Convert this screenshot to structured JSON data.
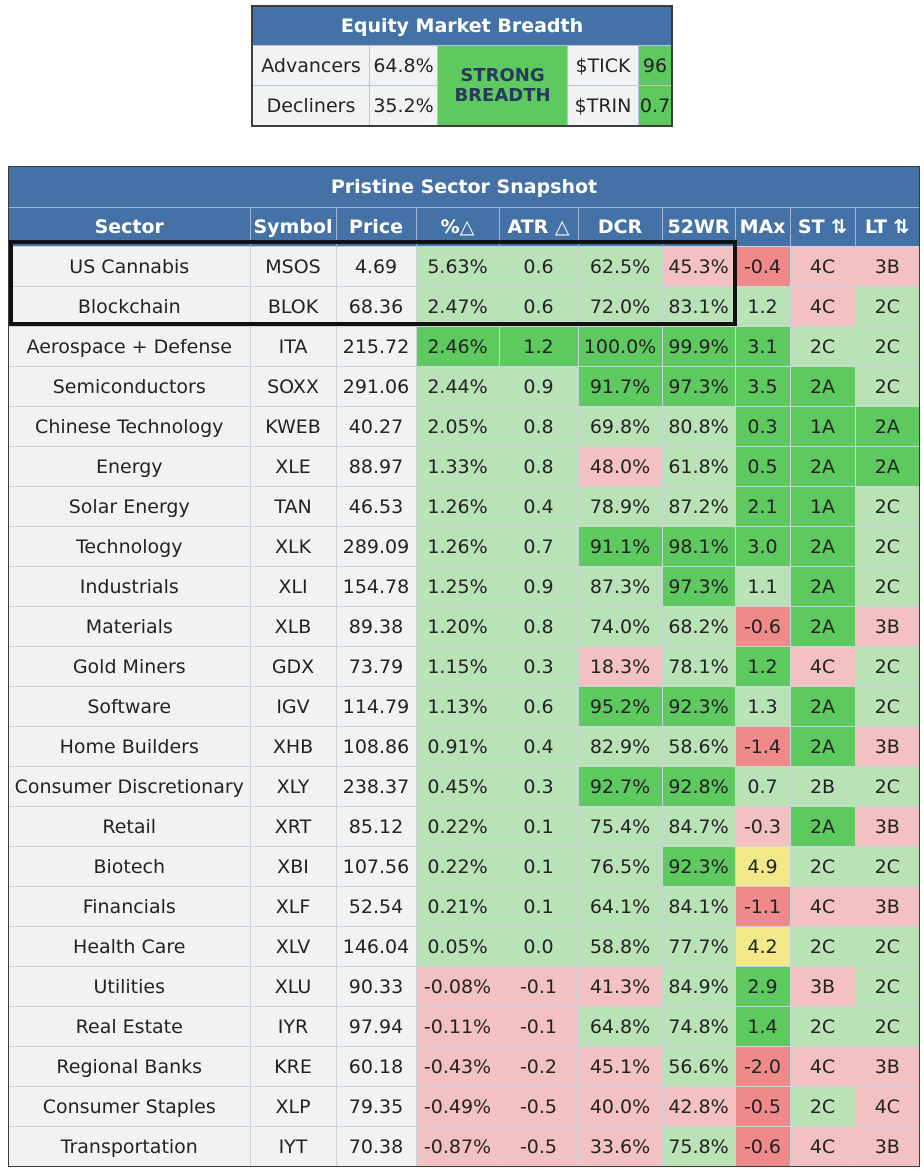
{
  "breadth": {
    "title": "Equity Market Breadth",
    "advancers_label": "Advancers",
    "advancers_value": "64.8%",
    "decliners_label": "Decliners",
    "decliners_value": "35.2%",
    "status_line1": "STRONG",
    "status_line2": "BREADTH",
    "tick_label": "$TICK",
    "tick_value": "96",
    "trin_label": "$TRIN",
    "trin_value": "0.7"
  },
  "snapshot": {
    "title": "Pristine Sector Snapshot",
    "columns": [
      "Sector",
      "Symbol",
      "Price",
      "%△",
      "ATR △",
      "DCR",
      "52WR",
      "MAx",
      "ST ⇅",
      "LT ⇅"
    ],
    "rows": [
      {
        "cells": [
          "US Cannabis",
          "MSOS",
          "4.69",
          "5.63%",
          "0.6",
          "62.5%",
          "45.3%",
          "-0.4",
          "4C",
          "3B"
        ],
        "colors": [
          "p",
          "p",
          "p",
          "lg",
          "lg",
          "lg",
          "pk",
          "rd",
          "pk",
          "pk"
        ]
      },
      {
        "cells": [
          "Blockchain",
          "BLOK",
          "68.36",
          "2.47%",
          "0.6",
          "72.0%",
          "83.1%",
          "1.2",
          "4C",
          "2C"
        ],
        "colors": [
          "p",
          "p",
          "p",
          "lg",
          "lg",
          "lg",
          "lg",
          "lg",
          "pk",
          "lg"
        ]
      },
      {
        "cells": [
          "Aerospace + Defense",
          "ITA",
          "215.72",
          "2.46%",
          "1.2",
          "100.0%",
          "99.9%",
          "3.1",
          "2C",
          "2C"
        ],
        "colors": [
          "p",
          "p",
          "p",
          "dg",
          "dg",
          "dg",
          "dg",
          "dg",
          "lg",
          "lg"
        ]
      },
      {
        "cells": [
          "Semiconductors",
          "SOXX",
          "291.06",
          "2.44%",
          "0.9",
          "91.7%",
          "97.3%",
          "3.5",
          "2A",
          "2C"
        ],
        "colors": [
          "p",
          "p",
          "p",
          "lg",
          "lg",
          "dg",
          "dg",
          "dg",
          "dg",
          "lg"
        ]
      },
      {
        "cells": [
          "Chinese Technology",
          "KWEB",
          "40.27",
          "2.05%",
          "0.8",
          "69.8%",
          "80.8%",
          "0.3",
          "1A",
          "2A"
        ],
        "colors": [
          "p",
          "p",
          "p",
          "lg",
          "lg",
          "lg",
          "lg",
          "dg",
          "dg",
          "dg"
        ]
      },
      {
        "cells": [
          "Energy",
          "XLE",
          "88.97",
          "1.33%",
          "0.8",
          "48.0%",
          "61.8%",
          "0.5",
          "2A",
          "2A"
        ],
        "colors": [
          "p",
          "p",
          "p",
          "lg",
          "lg",
          "pk",
          "lg",
          "dg",
          "dg",
          "dg"
        ]
      },
      {
        "cells": [
          "Solar Energy",
          "TAN",
          "46.53",
          "1.26%",
          "0.4",
          "78.9%",
          "87.2%",
          "2.1",
          "1A",
          "2C"
        ],
        "colors": [
          "p",
          "p",
          "p",
          "lg",
          "lg",
          "lg",
          "lg",
          "dg",
          "dg",
          "lg"
        ]
      },
      {
        "cells": [
          "Technology",
          "XLK",
          "289.09",
          "1.26%",
          "0.7",
          "91.1%",
          "98.1%",
          "3.0",
          "2A",
          "2C"
        ],
        "colors": [
          "p",
          "p",
          "p",
          "lg",
          "lg",
          "dg",
          "dg",
          "dg",
          "dg",
          "lg"
        ]
      },
      {
        "cells": [
          "Industrials",
          "XLI",
          "154.78",
          "1.25%",
          "0.9",
          "87.3%",
          "97.3%",
          "1.1",
          "2A",
          "2C"
        ],
        "colors": [
          "p",
          "p",
          "p",
          "lg",
          "lg",
          "lg",
          "dg",
          "lg",
          "dg",
          "lg"
        ]
      },
      {
        "cells": [
          "Materials",
          "XLB",
          "89.38",
          "1.20%",
          "0.8",
          "74.0%",
          "68.2%",
          "-0.6",
          "2A",
          "3B"
        ],
        "colors": [
          "p",
          "p",
          "p",
          "lg",
          "lg",
          "lg",
          "lg",
          "rd",
          "dg",
          "pk"
        ]
      },
      {
        "cells": [
          "Gold Miners",
          "GDX",
          "73.79",
          "1.15%",
          "0.3",
          "18.3%",
          "78.1%",
          "1.2",
          "4C",
          "2C"
        ],
        "colors": [
          "p",
          "p",
          "p",
          "lg",
          "lg",
          "pk",
          "lg",
          "dg",
          "pk",
          "lg"
        ]
      },
      {
        "cells": [
          "Software",
          "IGV",
          "114.79",
          "1.13%",
          "0.6",
          "95.2%",
          "92.3%",
          "1.3",
          "2A",
          "2C"
        ],
        "colors": [
          "p",
          "p",
          "p",
          "lg",
          "lg",
          "dg",
          "dg",
          "lg",
          "dg",
          "lg"
        ]
      },
      {
        "cells": [
          "Home Builders",
          "XHB",
          "108.86",
          "0.91%",
          "0.4",
          "82.9%",
          "58.6%",
          "-1.4",
          "2A",
          "3B"
        ],
        "colors": [
          "p",
          "p",
          "p",
          "lg",
          "lg",
          "lg",
          "lg",
          "rd",
          "dg",
          "pk"
        ]
      },
      {
        "cells": [
          "Consumer Discretionary",
          "XLY",
          "238.37",
          "0.45%",
          "0.3",
          "92.7%",
          "92.8%",
          "0.7",
          "2B",
          "2C"
        ],
        "colors": [
          "p",
          "p",
          "p",
          "lg",
          "lg",
          "dg",
          "dg",
          "lg",
          "lg",
          "lg"
        ]
      },
      {
        "cells": [
          "Retail",
          "XRT",
          "85.12",
          "0.22%",
          "0.1",
          "75.4%",
          "84.7%",
          "-0.3",
          "2A",
          "3B"
        ],
        "colors": [
          "p",
          "p",
          "p",
          "lg",
          "lg",
          "lg",
          "lg",
          "pk",
          "dg",
          "pk"
        ]
      },
      {
        "cells": [
          "Biotech",
          "XBI",
          "107.56",
          "0.22%",
          "0.1",
          "76.5%",
          "92.3%",
          "4.9",
          "2C",
          "2C"
        ],
        "colors": [
          "p",
          "p",
          "p",
          "lg",
          "lg",
          "lg",
          "dg",
          "yl",
          "lg",
          "lg"
        ]
      },
      {
        "cells": [
          "Financials",
          "XLF",
          "52.54",
          "0.21%",
          "0.1",
          "64.1%",
          "84.1%",
          "-1.1",
          "4C",
          "3B"
        ],
        "colors": [
          "p",
          "p",
          "p",
          "lg",
          "lg",
          "lg",
          "lg",
          "rd",
          "pk",
          "pk"
        ]
      },
      {
        "cells": [
          "Health Care",
          "XLV",
          "146.04",
          "0.05%",
          "0.0",
          "58.8%",
          "77.7%",
          "4.2",
          "2C",
          "2C"
        ],
        "colors": [
          "p",
          "p",
          "p",
          "lg",
          "lg",
          "lg",
          "lg",
          "yl",
          "lg",
          "lg"
        ]
      },
      {
        "cells": [
          "Utilities",
          "XLU",
          "90.33",
          "-0.08%",
          "-0.1",
          "41.3%",
          "84.9%",
          "2.9",
          "3B",
          "2C"
        ],
        "colors": [
          "p",
          "p",
          "p",
          "pk",
          "pk",
          "pk",
          "lg",
          "dg",
          "pk",
          "lg"
        ]
      },
      {
        "cells": [
          "Real Estate",
          "IYR",
          "97.94",
          "-0.11%",
          "-0.1",
          "64.8%",
          "74.8%",
          "1.4",
          "2C",
          "2C"
        ],
        "colors": [
          "p",
          "p",
          "p",
          "pk",
          "pk",
          "lg",
          "lg",
          "dg",
          "lg",
          "lg"
        ]
      },
      {
        "cells": [
          "Regional Banks",
          "KRE",
          "60.18",
          "-0.43%",
          "-0.2",
          "45.1%",
          "56.6%",
          "-2.0",
          "4C",
          "3B"
        ],
        "colors": [
          "p",
          "p",
          "p",
          "pk",
          "pk",
          "pk",
          "lg",
          "rd",
          "pk",
          "pk"
        ]
      },
      {
        "cells": [
          "Consumer Staples",
          "XLP",
          "79.35",
          "-0.49%",
          "-0.5",
          "40.0%",
          "42.8%",
          "-0.5",
          "2C",
          "4C"
        ],
        "colors": [
          "p",
          "p",
          "p",
          "pk",
          "pk",
          "pk",
          "pk",
          "rd",
          "lg",
          "pk"
        ]
      },
      {
        "cells": [
          "Transportation",
          "IYT",
          "70.38",
          "-0.87%",
          "-0.5",
          "33.6%",
          "75.8%",
          "-0.6",
          "4C",
          "3B"
        ],
        "colors": [
          "p",
          "p",
          "p",
          "pk",
          "pk",
          "pk",
          "lg",
          "rd",
          "pk",
          "pk"
        ]
      }
    ]
  }
}
